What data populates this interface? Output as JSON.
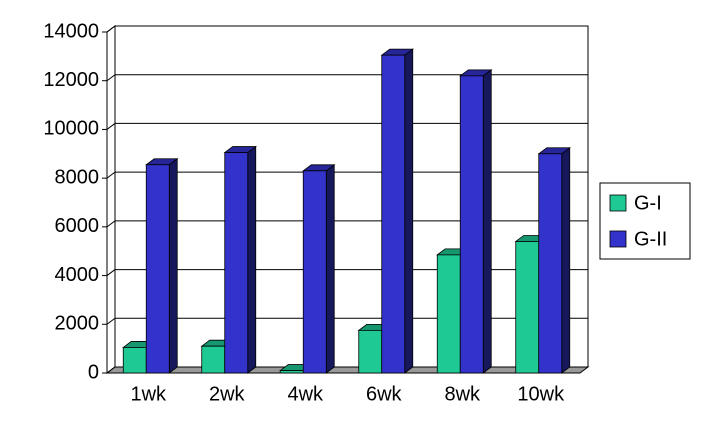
{
  "chart_data": {
    "type": "bar3d",
    "categories": [
      "1wk",
      "2wk",
      "4wk",
      "6wk",
      "8wk",
      "10wk"
    ],
    "series": [
      {
        "name": "G-I",
        "color": "#1ec994",
        "values": [
          1050,
          1100,
          100,
          1750,
          4850,
          5400
        ]
      },
      {
        "name": "G-II",
        "color": "#3333cc",
        "values": [
          8550,
          9050,
          8300,
          13050,
          12200,
          9000
        ]
      }
    ],
    "ylim": [
      0,
      14000
    ],
    "yticks": [
      0,
      2000,
      4000,
      6000,
      8000,
      10000,
      12000,
      14000
    ],
    "grid": true,
    "legend": "right"
  }
}
